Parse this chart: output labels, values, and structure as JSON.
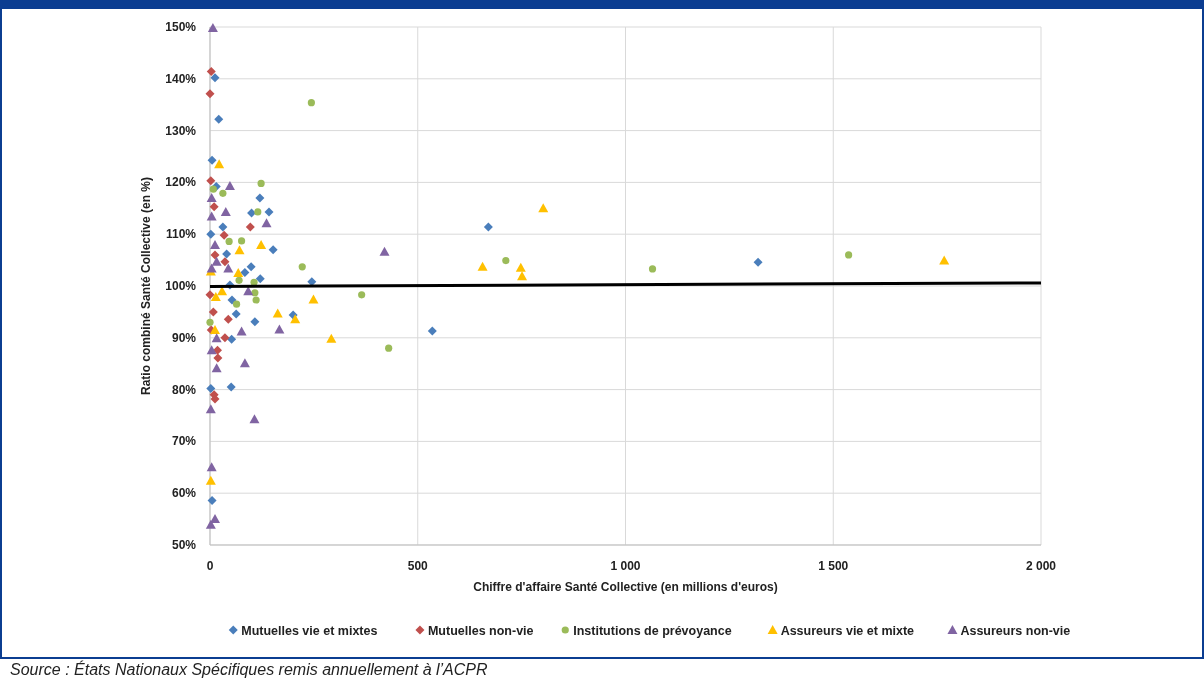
{
  "chart_data": {
    "type": "scatter",
    "xlabel": "Chiffre d'affaire Santé Collective (en millions d'euros)",
    "ylabel": "Ratio combiné Santé Collective (en %)",
    "xlim": [
      0,
      2000
    ],
    "xticks": [
      0,
      500,
      {
        "value": 1000,
        "label": "1 000"
      },
      {
        "value": 1500,
        "label": "1 500"
      },
      {
        "value": 2000,
        "label": "2 000"
      }
    ],
    "ylim": [
      50,
      150
    ],
    "yticks": [
      {
        "value": 50,
        "label": "50%"
      },
      {
        "value": 60,
        "label": "60%"
      },
      {
        "value": 70,
        "label": "70%"
      },
      {
        "value": 80,
        "label": "80%"
      },
      {
        "value": 90,
        "label": "90%"
      },
      {
        "value": 100,
        "label": "100%"
      },
      {
        "value": 110,
        "label": "110%"
      },
      {
        "value": 120,
        "label": "120%"
      },
      {
        "value": 130,
        "label": "130%"
      },
      {
        "value": 140,
        "label": "140%"
      },
      {
        "value": 150,
        "label": "150%"
      }
    ],
    "grid": true,
    "legend": "bottom",
    "annotations": [
      "Source : États Nationaux Spécifiques remis annuellement à l’ACPR"
    ],
    "series": [
      {
        "name": "Mutuelles vie et mixtes",
        "color": "#4a7ebb",
        "marker": "diamond",
        "x": [
          12,
          21,
          5,
          15,
          120,
          100,
          142,
          31,
          2,
          152,
          99,
          84,
          121,
          40,
          48,
          53,
          51,
          2,
          5,
          535,
          670,
          1319,
          200,
          108,
          245,
          52,
          63
        ],
        "values": [
          140.2,
          132.2,
          124.3,
          119.2,
          117,
          114.1,
          114.3,
          111.4,
          110,
          107,
          103.7,
          102.6,
          101.4,
          106.2,
          100.2,
          97.3,
          80.5,
          80.2,
          58.6,
          91.3,
          111.4,
          104.6,
          94.4,
          93.1,
          100.8,
          89.7,
          94.6
        ]
      },
      {
        "name": "Mutuelles non-vie",
        "color": "#c0504d",
        "marker": "diamond",
        "x": [
          3,
          0,
          2,
          97,
          10,
          34,
          36,
          12,
          44,
          36,
          18,
          19,
          10,
          12,
          0,
          8,
          3
        ],
        "values": [
          141.4,
          137.1,
          120.3,
          111.4,
          115.3,
          109.8,
          104.7,
          106,
          93.6,
          90,
          87.6,
          86.1,
          79,
          78.2,
          98.3,
          95,
          91.5
        ]
      },
      {
        "name": "Institutions de prévoyance",
        "color": "#9bbb59",
        "marker": "circle",
        "x": [
          123,
          115,
          31,
          8,
          76,
          46,
          70,
          106,
          222,
          108,
          111,
          64,
          244,
          365,
          430,
          712,
          1065,
          1537,
          0
        ],
        "values": [
          119.8,
          114.3,
          117.9,
          118.7,
          108.7,
          108.6,
          101.1,
          100.7,
          103.7,
          98.7,
          97.3,
          96.5,
          135.4,
          98.3,
          88,
          104.9,
          103.3,
          106,
          93
        ]
      },
      {
        "name": "Assureurs vie et mixte",
        "color": "#ffc000",
        "marker": "triangle",
        "x": [
          22,
          123,
          71,
          68,
          2,
          163,
          205,
          2,
          14,
          249,
          292,
          656,
          748,
          751,
          802,
          1767,
          12,
          29
        ],
        "values": [
          123.5,
          107.9,
          106.9,
          102.5,
          102.8,
          94.7,
          93.6,
          62.4,
          97.9,
          97.4,
          89.8,
          103.7,
          103.5,
          101.9,
          115,
          104.9,
          91.5,
          99
        ]
      },
      {
        "name": "Assureurs non-vie",
        "color": "#8064a2",
        "marker": "triangle",
        "x": [
          7,
          48,
          4,
          38,
          136,
          4,
          12,
          44,
          16,
          4,
          92,
          76,
          167,
          16,
          4,
          84,
          16,
          2,
          107,
          4,
          12,
          2,
          420
        ],
        "values": [
          149.8,
          119.3,
          117,
          114.3,
          112.1,
          113.4,
          107.9,
          103.4,
          104.7,
          103.4,
          99,
          91.2,
          91.6,
          89.9,
          87.6,
          85.1,
          84.1,
          76.2,
          74.3,
          65,
          55,
          53.9,
          106.6
        ]
      },
      {
        "type": "line",
        "color": "#000000",
        "x": [
          0,
          2000
        ],
        "values": [
          99.9,
          100.6
        ]
      }
    ]
  }
}
